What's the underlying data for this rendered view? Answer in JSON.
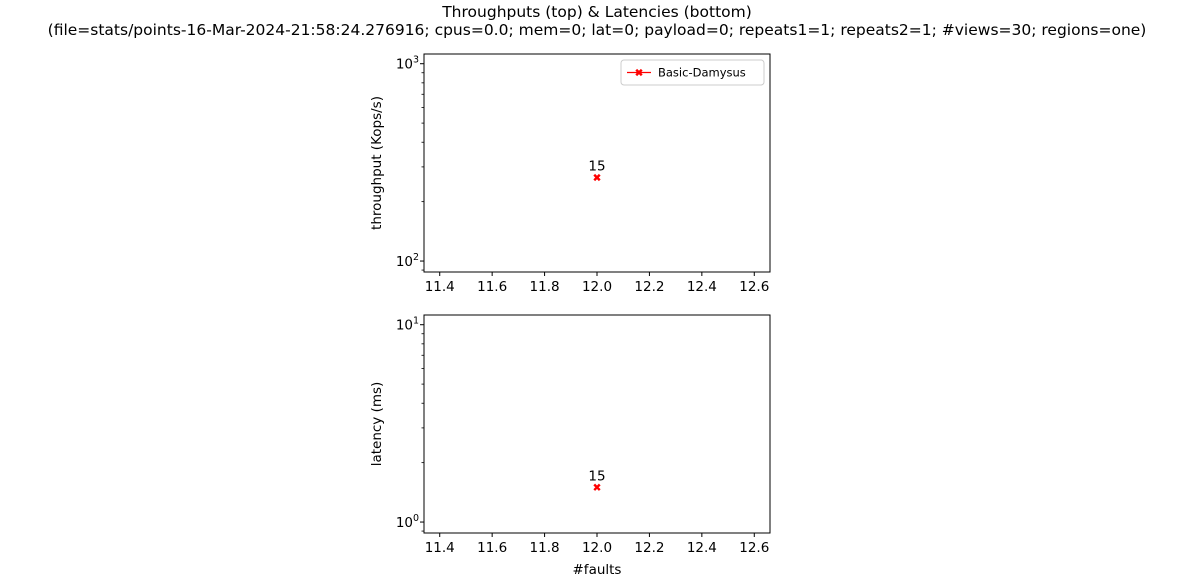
{
  "title_line1": "Throughputs (top) & Latencies (bottom)",
  "title_line2": "(file=stats/points-16-Mar-2024-21:58:24.276916; cpus=0.0; mem=0; lat=0; payload=0; repeats1=1; repeats2=1; #views=30; regions=one)",
  "colors": {
    "series": "#ff0000",
    "axes": "#000000",
    "background": "#ffffff"
  },
  "chart_data": [
    {
      "type": "line",
      "panel": "top",
      "ylabel": "throughput (Kops/s)",
      "xlabel": "",
      "yscale": "log",
      "xlim": [
        11.34,
        12.66
      ],
      "ylim": [
        88,
        1120
      ],
      "x_ticks": [
        "11.4",
        "11.6",
        "11.8",
        "12.0",
        "12.2",
        "12.4",
        "12.6"
      ],
      "y_ticks": [
        {
          "value": 100,
          "label": "10",
          "exp": "2"
        },
        {
          "value": 1000,
          "label": "10",
          "exp": "3"
        }
      ],
      "legend": {
        "position": "top-right",
        "entries": [
          "Basic-Damysus"
        ]
      },
      "grid": false,
      "series": [
        {
          "name": "Basic-Damysus",
          "marker": "X",
          "color": "#ff0000",
          "points": [
            {
              "x": 12.0,
              "y": 265,
              "label": "15"
            }
          ]
        }
      ]
    },
    {
      "type": "line",
      "panel": "bottom",
      "ylabel": "latency (ms)",
      "xlabel": "#faults",
      "yscale": "log",
      "xlim": [
        11.34,
        12.66
      ],
      "ylim": [
        0.88,
        11.2
      ],
      "x_ticks": [
        "11.4",
        "11.6",
        "11.8",
        "12.0",
        "12.2",
        "12.4",
        "12.6"
      ],
      "y_ticks": [
        {
          "value": 1,
          "label": "10",
          "exp": "0"
        },
        {
          "value": 10,
          "label": "10",
          "exp": "1"
        }
      ],
      "grid": false,
      "series": [
        {
          "name": "Basic-Damysus",
          "marker": "X",
          "color": "#ff0000",
          "points": [
            {
              "x": 12.0,
              "y": 1.5,
              "label": "15"
            }
          ]
        }
      ]
    }
  ]
}
